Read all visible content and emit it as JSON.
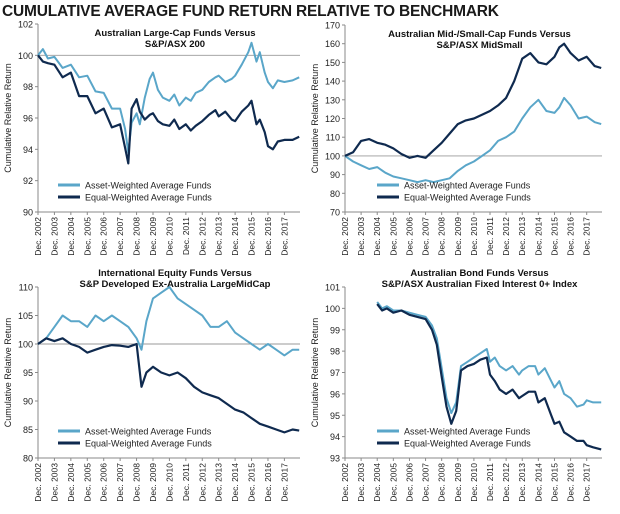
{
  "page": {
    "title": "CUMULATIVE AVERAGE FUND RETURN RELATIVE TO BENCHMARK"
  },
  "colors": {
    "asset": "#5aa6c9",
    "equal": "#0f2a4f",
    "grid": "#8a8a8a"
  },
  "chart_data": [
    {
      "type": "line",
      "title": [
        "Australian Large-Cap Funds Versus",
        "S&P/ASX 200"
      ],
      "ylabel": "Cumulative Relative Return",
      "ylim": [
        90,
        102
      ],
      "yticks": [
        90,
        92,
        94,
        96,
        98,
        100,
        102
      ],
      "xlim": [
        2002.0,
        2017.95
      ],
      "categories": [
        "Dec. 2002",
        "Dec. 2003",
        "Dec. 2004",
        "Dec. 2005",
        "Dec. 2006",
        "Dec. 2007",
        "Dec. 2008",
        "Dec. 2009",
        "Dec. 2010",
        "Dec. 2011",
        "Dec. 2012",
        "Dec. 2013",
        "Dec. 2014",
        "Dec. 2015",
        "Dec. 2016",
        "Dec. 2017"
      ],
      "baseline": 100,
      "legend": "bottom-left",
      "series": [
        {
          "name": "Asset-Weighted Average Funds",
          "x": [
            2002,
            2002.3,
            2002.6,
            2003,
            2003.5,
            2004,
            2004.5,
            2005,
            2005.5,
            2006,
            2006.5,
            2007,
            2007.3,
            2007.5,
            2007.7,
            2008,
            2008.2,
            2008.5,
            2008.8,
            2009,
            2009.3,
            2009.6,
            2010,
            2010.3,
            2010.6,
            2011,
            2011.3,
            2011.6,
            2012,
            2012.4,
            2012.8,
            2013,
            2013.4,
            2013.8,
            2014,
            2014.4,
            2014.8,
            2015,
            2015.3,
            2015.5,
            2015.8,
            2016,
            2016.3,
            2016.6,
            2017,
            2017.5,
            2017.9
          ],
          "y": [
            100,
            100.4,
            99.8,
            99.9,
            99.2,
            99.4,
            98.6,
            98.7,
            97.7,
            97.6,
            96.6,
            96.6,
            95.3,
            93.8,
            95.7,
            96.3,
            95.6,
            97.3,
            98.5,
            98.9,
            97.8,
            97.3,
            97.1,
            97.5,
            96.8,
            97.3,
            97.1,
            97.6,
            97.8,
            98.3,
            98.6,
            98.7,
            98.3,
            98.5,
            98.7,
            99.4,
            100.2,
            100.8,
            99.6,
            100.2,
            98.9,
            98.3,
            97.9,
            98.4,
            98.3,
            98.4,
            98.6
          ]
        },
        {
          "name": "Equal-Weighted Average Funds",
          "x": [
            2002,
            2002.3,
            2002.6,
            2003,
            2003.5,
            2004,
            2004.5,
            2005,
            2005.5,
            2006,
            2006.5,
            2007,
            2007.3,
            2007.5,
            2007.7,
            2008,
            2008.2,
            2008.5,
            2008.8,
            2009,
            2009.3,
            2009.6,
            2010,
            2010.3,
            2010.6,
            2011,
            2011.3,
            2011.6,
            2012,
            2012.4,
            2012.8,
            2013,
            2013.4,
            2013.8,
            2014,
            2014.4,
            2014.8,
            2015,
            2015.3,
            2015.5,
            2015.8,
            2016,
            2016.3,
            2016.6,
            2017,
            2017.5,
            2017.9
          ],
          "y": [
            100,
            99.6,
            99.5,
            99.4,
            98.6,
            98.9,
            97.4,
            97.4,
            96.3,
            96.6,
            95.4,
            95.6,
            94.1,
            93.1,
            96.6,
            97.2,
            96.4,
            95.9,
            96.2,
            96.3,
            95.8,
            95.6,
            95.5,
            95.9,
            95.3,
            95.6,
            95.2,
            95.5,
            95.8,
            96.2,
            96.5,
            96.1,
            96.4,
            95.9,
            95.8,
            96.4,
            96.8,
            97.1,
            95.6,
            95.9,
            95.1,
            94.2,
            94.0,
            94.5,
            94.6,
            94.6,
            94.8
          ]
        }
      ]
    },
    {
      "type": "line",
      "title": [
        "Australian Mid-/Small-Cap Funds Versus",
        "S&P/ASX MidSmall"
      ],
      "ylabel": "Cumulative Relative Return",
      "ylim": [
        70,
        170
      ],
      "yticks": [
        70,
        80,
        90,
        100,
        110,
        120,
        130,
        140,
        150,
        160,
        170
      ],
      "xlim": [
        2002.0,
        2017.95
      ],
      "categories": [
        "Dec. 2002",
        "Dec. 2003",
        "Dec. 2004",
        "Dec. 2005",
        "Dec. 2006",
        "Dec. 2007",
        "Dec. 2008",
        "Dec. 2009",
        "Dec. 2010",
        "Dec. 2011",
        "Dec. 2012",
        "Dec. 2013",
        "Dec. 2014",
        "Dec. 2015",
        "Dec. 2016",
        "Dec. 2017"
      ],
      "baseline": 100,
      "legend": "bottom-center",
      "series": [
        {
          "name": "Asset-Weighted Average Funds",
          "x": [
            2002,
            2002.5,
            2003,
            2003.5,
            2004,
            2004.5,
            2005,
            2005.5,
            2006,
            2006.5,
            2007,
            2007.5,
            2008,
            2008.5,
            2009,
            2009.5,
            2010,
            2010.5,
            2011,
            2011.5,
            2012,
            2012.5,
            2013,
            2013.5,
            2014,
            2014.5,
            2015,
            2015.3,
            2015.6,
            2016,
            2016.5,
            2017,
            2017.5,
            2017.9
          ],
          "y": [
            100,
            97,
            95,
            93,
            94,
            91,
            89,
            88,
            87,
            86,
            87,
            86,
            87,
            88,
            92,
            95,
            97,
            100,
            103,
            108,
            110,
            113,
            120,
            126,
            130,
            124,
            123,
            126,
            131,
            127,
            120,
            121,
            118,
            117
          ]
        },
        {
          "name": "Equal-Weighted Average Funds",
          "x": [
            2002,
            2002.5,
            2003,
            2003.5,
            2004,
            2004.5,
            2005,
            2005.5,
            2006,
            2006.5,
            2007,
            2007.5,
            2008,
            2008.5,
            2009,
            2009.5,
            2010,
            2010.5,
            2011,
            2011.5,
            2012,
            2012.5,
            2013,
            2013.5,
            2014,
            2014.5,
            2015,
            2015.3,
            2015.6,
            2016,
            2016.5,
            2017,
            2017.5,
            2017.9
          ],
          "y": [
            100,
            102,
            108,
            109,
            107,
            106,
            104,
            101,
            99,
            100,
            99,
            103,
            107,
            112,
            117,
            119,
            120,
            122,
            124,
            127,
            131,
            140,
            152,
            155,
            150,
            149,
            153,
            158,
            160,
            155,
            151,
            153,
            148,
            147
          ]
        }
      ]
    },
    {
      "type": "line",
      "title": [
        "International Equity Funds Versus",
        "S&P Developed Ex-Australia LargeMidCap"
      ],
      "ylabel": "Cumulative Relative Return",
      "ylim": [
        80,
        110
      ],
      "yticks": [
        80,
        85,
        90,
        95,
        100,
        105,
        110
      ],
      "xlim": [
        2002.0,
        2017.95
      ],
      "categories": [
        "Dec. 2002",
        "Dec. 2003",
        "Dec. 2004",
        "Dec. 2005",
        "Dec. 2006",
        "Dec. 2007",
        "Dec. 2008",
        "Dec. 2009",
        "Dec. 2010",
        "Dec. 2011",
        "Dec. 2012",
        "Dec. 2013",
        "Dec. 2014",
        "Dec. 2015",
        "Dec. 2016",
        "Dec. 2017"
      ],
      "baseline": 100,
      "legend": "bottom-left",
      "series": [
        {
          "name": "Asset-Weighted Average Funds",
          "x": [
            2002,
            2002.5,
            2003,
            2003.5,
            2004,
            2004.5,
            2005,
            2005.5,
            2006,
            2006.5,
            2007,
            2007.5,
            2008,
            2008.3,
            2008.6,
            2009,
            2009.5,
            2010,
            2010.5,
            2011,
            2011.5,
            2012,
            2012.5,
            2013,
            2013.5,
            2014,
            2014.5,
            2015,
            2015.5,
            2016,
            2016.5,
            2017,
            2017.5,
            2017.9
          ],
          "y": [
            100,
            101,
            103,
            105,
            104,
            104,
            103,
            105,
            104,
            105,
            104,
            103,
            101,
            99,
            104,
            108,
            109,
            110,
            108,
            107,
            106,
            105,
            103,
            103,
            104,
            102,
            101,
            100,
            99,
            100,
            99,
            98,
            99,
            99
          ]
        },
        {
          "name": "Equal-Weighted Average Funds",
          "x": [
            2002,
            2002.5,
            2003,
            2003.5,
            2004,
            2004.5,
            2005,
            2005.5,
            2006,
            2006.5,
            2007,
            2007.5,
            2008,
            2008.3,
            2008.6,
            2009,
            2009.5,
            2010,
            2010.5,
            2011,
            2011.5,
            2012,
            2012.5,
            2013,
            2013.5,
            2014,
            2014.5,
            2015,
            2015.5,
            2016,
            2016.5,
            2017,
            2017.5,
            2017.9
          ],
          "y": [
            100,
            101,
            100.5,
            101,
            100,
            99.5,
            98.5,
            99,
            99.5,
            99.8,
            99.7,
            99.5,
            100,
            92.5,
            95,
            96,
            95,
            94.5,
            95,
            94,
            92.5,
            91.5,
            91,
            90.5,
            89.5,
            88.5,
            88,
            87,
            86,
            85.5,
            85,
            84.5,
            85,
            84.8
          ]
        }
      ]
    },
    {
      "type": "line",
      "title": [
        "Australian Bond Funds Versus",
        "S&P/ASX Australian Fixed Interest 0+ Index"
      ],
      "ylabel": "Cumulative Relative Return",
      "ylim": [
        93,
        101
      ],
      "yticks": [
        93,
        94,
        95,
        96,
        97,
        98,
        99,
        100,
        101
      ],
      "xlim": [
        2002.0,
        2017.95
      ],
      "categories": [
        "Dec. 2002",
        "Dec. 2003",
        "Dec. 2004",
        "Dec. 2005",
        "Dec. 2006",
        "Dec. 2007",
        "Dec. 2008",
        "Dec. 2009",
        "Dec. 2010",
        "Dec. 2011",
        "Dec. 2012",
        "Dec. 2013",
        "Dec. 2014",
        "Dec. 2015",
        "Dec. 2016",
        "Dec. 2017"
      ],
      "baseline": null,
      "legend": "bottom-center",
      "series": [
        {
          "name": "Asset-Weighted Average Funds",
          "x": [
            2004,
            2004.3,
            2004.6,
            2005,
            2005.5,
            2006,
            2006.5,
            2007,
            2007.4,
            2007.7,
            2008,
            2008.3,
            2008.6,
            2008.9,
            2009.2,
            2009.6,
            2010,
            2010.4,
            2010.8,
            2011,
            2011.3,
            2011.6,
            2012,
            2012.4,
            2012.8,
            2013,
            2013.4,
            2013.8,
            2014,
            2014.4,
            2014.8,
            2015,
            2015.3,
            2015.6,
            2016,
            2016.4,
            2016.8,
            2017,
            2017.4,
            2017.9
          ],
          "y": [
            100.3,
            100,
            100.1,
            99.9,
            99.9,
            99.8,
            99.7,
            99.6,
            99.2,
            98.6,
            97.2,
            95.8,
            95.1,
            95.6,
            97.3,
            97.5,
            97.7,
            97.9,
            98.1,
            97.5,
            97.7,
            97.3,
            97.1,
            97.3,
            96.9,
            97.1,
            97.3,
            97.3,
            96.9,
            97.2,
            96.6,
            96.3,
            96.6,
            96.0,
            95.8,
            95.4,
            95.5,
            95.7,
            95.6,
            95.6
          ]
        },
        {
          "name": "Equal-Weighted Average Funds",
          "x": [
            2004,
            2004.3,
            2004.6,
            2005,
            2005.5,
            2006,
            2006.5,
            2007,
            2007.4,
            2007.7,
            2008,
            2008.3,
            2008.6,
            2008.9,
            2009.2,
            2009.6,
            2010,
            2010.4,
            2010.8,
            2011,
            2011.3,
            2011.6,
            2012,
            2012.4,
            2012.8,
            2013,
            2013.4,
            2013.8,
            2014,
            2014.4,
            2014.8,
            2015,
            2015.3,
            2015.6,
            2016,
            2016.4,
            2016.8,
            2017,
            2017.4,
            2017.9
          ],
          "y": [
            100.2,
            99.9,
            100,
            99.8,
            99.9,
            99.7,
            99.6,
            99.5,
            99.0,
            98.3,
            96.8,
            95.4,
            94.6,
            95.2,
            97.1,
            97.3,
            97.4,
            97.6,
            97.7,
            96.9,
            96.6,
            96.2,
            96.0,
            96.2,
            95.8,
            95.9,
            96.1,
            96.1,
            95.6,
            95.8,
            95.0,
            94.6,
            94.7,
            94.2,
            94.0,
            93.8,
            93.8,
            93.6,
            93.5,
            93.4
          ]
        }
      ]
    }
  ]
}
